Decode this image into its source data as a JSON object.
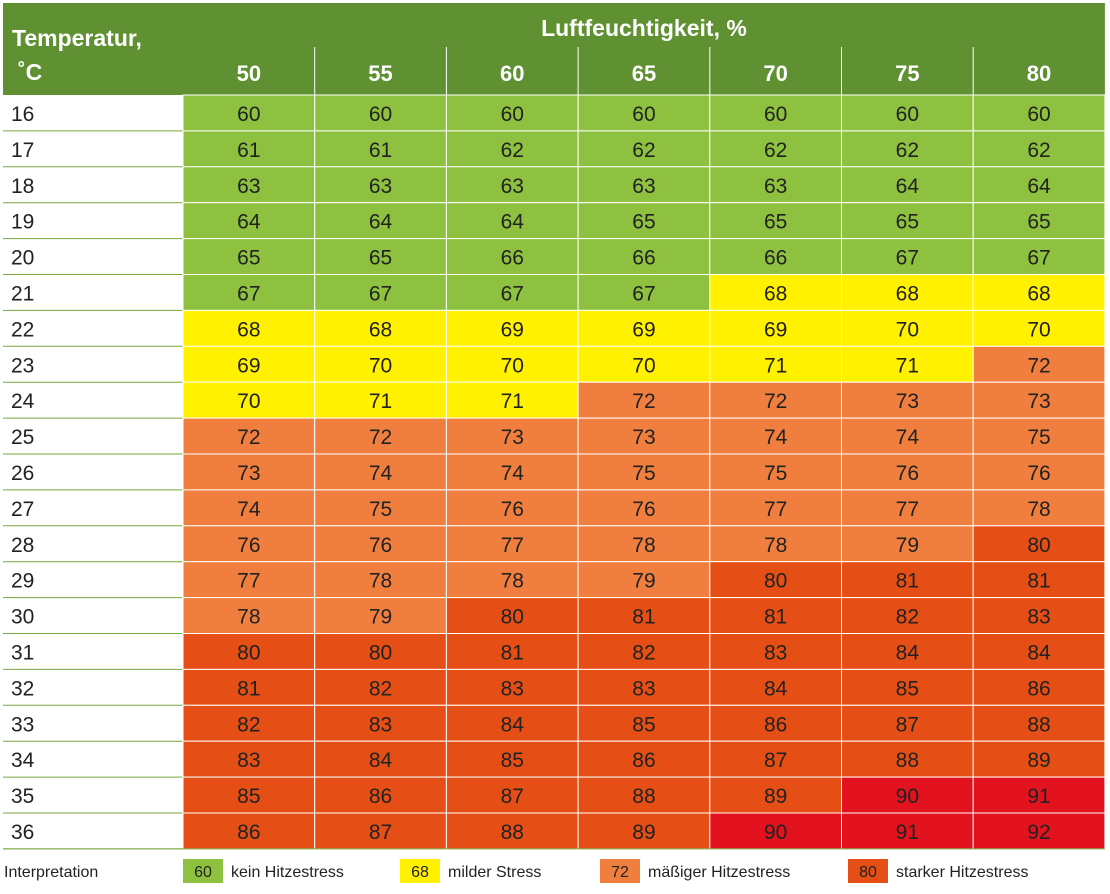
{
  "header": {
    "row_label": "Temperatur,",
    "row_unit": "˚C",
    "col_label": "Luftfeuchtigkeit, %"
  },
  "chart_data": {
    "type": "heatmap",
    "xlabel": "Luftfeuchtigkeit, %",
    "ylabel": "Temperatur, ˚C",
    "x": [
      50,
      55,
      60,
      65,
      70,
      75,
      80
    ],
    "y": [
      16,
      17,
      18,
      19,
      20,
      21,
      22,
      23,
      24,
      25,
      26,
      27,
      28,
      29,
      30,
      31,
      32,
      33,
      34,
      35,
      36
    ],
    "values": [
      [
        60,
        60,
        60,
        60,
        60,
        60,
        60
      ],
      [
        61,
        61,
        62,
        62,
        62,
        62,
        62
      ],
      [
        63,
        63,
        63,
        63,
        63,
        64,
        64
      ],
      [
        64,
        64,
        64,
        65,
        65,
        65,
        65
      ],
      [
        65,
        65,
        66,
        66,
        66,
        67,
        67
      ],
      [
        67,
        67,
        67,
        67,
        68,
        68,
        68
      ],
      [
        68,
        68,
        69,
        69,
        69,
        70,
        70
      ],
      [
        69,
        70,
        70,
        70,
        71,
        71,
        72
      ],
      [
        70,
        71,
        71,
        72,
        72,
        73,
        73
      ],
      [
        72,
        72,
        73,
        73,
        74,
        74,
        75
      ],
      [
        73,
        74,
        74,
        75,
        75,
        76,
        76
      ],
      [
        74,
        75,
        76,
        76,
        77,
        77,
        78
      ],
      [
        76,
        76,
        77,
        78,
        78,
        79,
        80
      ],
      [
        77,
        78,
        78,
        79,
        80,
        81,
        81
      ],
      [
        78,
        79,
        80,
        81,
        81,
        82,
        83
      ],
      [
        80,
        80,
        81,
        82,
        83,
        84,
        84
      ],
      [
        81,
        82,
        83,
        83,
        84,
        85,
        86
      ],
      [
        82,
        83,
        84,
        85,
        86,
        87,
        88
      ],
      [
        83,
        84,
        85,
        86,
        87,
        88,
        89
      ],
      [
        85,
        86,
        87,
        88,
        89,
        90,
        91
      ],
      [
        86,
        87,
        88,
        89,
        90,
        91,
        92
      ]
    ],
    "thresholds": [
      {
        "min": 60,
        "color": "#8dc13f",
        "legend_value": "60",
        "label": "kein Hitzestress"
      },
      {
        "min": 68,
        "color": "#fff100",
        "legend_value": "68",
        "label": "milder Stress"
      },
      {
        "min": 72,
        "color": "#f07f3f",
        "legend_value": "72",
        "label": "mäßiger Hitzestress"
      },
      {
        "min": 80,
        "color": "#e54f15",
        "legend_value": "80",
        "label": "starker Hitzestress"
      },
      {
        "min": 90,
        "color": "#e2131f"
      }
    ],
    "legend_title": "Interpretation",
    "legend_position": "bottom"
  },
  "colors": {
    "header_bg": "#5f9132",
    "header_text": "#ffffff",
    "cell_text": "#222222",
    "row_label_text": "#222222",
    "divider": "#7aa63e"
  }
}
